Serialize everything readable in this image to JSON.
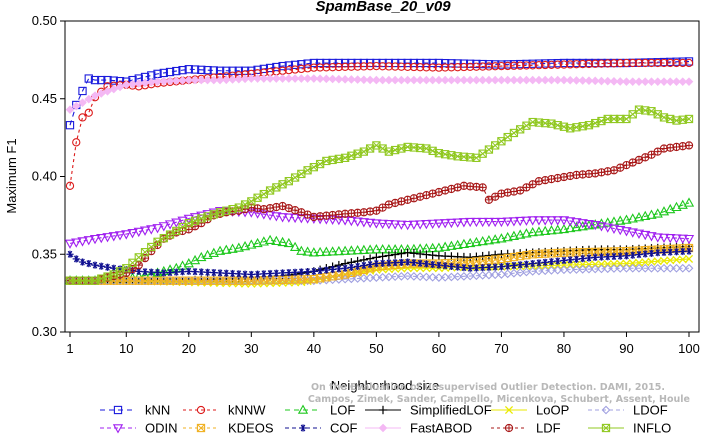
{
  "chart_data": {
    "type": "line",
    "title": "SpamBase_20_v09",
    "xlabel": "Neighborhood size",
    "ylabel": "Maximum F1",
    "xlim": [
      1,
      100
    ],
    "ylim": [
      0.3,
      0.5
    ],
    "x_ticks": [
      1,
      10,
      20,
      30,
      40,
      50,
      60,
      70,
      80,
      90,
      100
    ],
    "y_ticks": [
      "0.30",
      "0.35",
      "0.40",
      "0.45",
      "0.50"
    ],
    "grid": false,
    "legend_position": "bottom",
    "watermark": [
      "Campos, Zimek, Sander, Campello, Micenkova, Schubert, Assent, Houle",
      "On the Evaluation of Unsupervised Outlier Detection. DAMI, 2015."
    ],
    "series": [
      {
        "name": "kNN",
        "color": "#1a1adc",
        "marker": "square",
        "dash": "5,4",
        "points": [
          [
            1,
            0.433
          ],
          [
            2,
            0.446
          ],
          [
            3,
            0.455
          ],
          [
            4,
            0.463
          ],
          [
            5,
            0.462
          ],
          [
            7,
            0.462
          ],
          [
            10,
            0.461
          ],
          [
            12,
            0.463
          ],
          [
            15,
            0.466
          ],
          [
            20,
            0.469
          ],
          [
            25,
            0.468
          ],
          [
            30,
            0.468
          ],
          [
            35,
            0.471
          ],
          [
            40,
            0.473
          ],
          [
            50,
            0.473
          ],
          [
            60,
            0.473
          ],
          [
            70,
            0.472
          ],
          [
            80,
            0.473
          ],
          [
            90,
            0.473
          ],
          [
            100,
            0.474
          ]
        ]
      },
      {
        "name": "kNNW",
        "color": "#dc1a1a",
        "marker": "circle",
        "dash": "3,3",
        "points": [
          [
            1,
            0.394
          ],
          [
            2,
            0.422
          ],
          [
            3,
            0.438
          ],
          [
            4,
            0.441
          ],
          [
            5,
            0.451
          ],
          [
            7,
            0.458
          ],
          [
            10,
            0.459
          ],
          [
            12,
            0.458
          ],
          [
            15,
            0.46
          ],
          [
            20,
            0.462
          ],
          [
            25,
            0.464
          ],
          [
            30,
            0.466
          ],
          [
            35,
            0.468
          ],
          [
            40,
            0.47
          ],
          [
            50,
            0.471
          ],
          [
            60,
            0.47
          ],
          [
            70,
            0.471
          ],
          [
            80,
            0.472
          ],
          [
            90,
            0.473
          ],
          [
            100,
            0.473
          ]
        ]
      },
      {
        "name": "LOF",
        "color": "#1ec81e",
        "marker": "triangle-up",
        "dash": "5,4",
        "points": [
          [
            1,
            0.333
          ],
          [
            5,
            0.333
          ],
          [
            10,
            0.334
          ],
          [
            15,
            0.338
          ],
          [
            18,
            0.341
          ],
          [
            20,
            0.344
          ],
          [
            22,
            0.348
          ],
          [
            25,
            0.352
          ],
          [
            28,
            0.354
          ],
          [
            30,
            0.356
          ],
          [
            33,
            0.359
          ],
          [
            36,
            0.357
          ],
          [
            38,
            0.352
          ],
          [
            40,
            0.351
          ],
          [
            45,
            0.352
          ],
          [
            50,
            0.353
          ],
          [
            55,
            0.353
          ],
          [
            60,
            0.354
          ],
          [
            65,
            0.357
          ],
          [
            70,
            0.36
          ],
          [
            75,
            0.364
          ],
          [
            80,
            0.366
          ],
          [
            85,
            0.369
          ],
          [
            90,
            0.372
          ],
          [
            95,
            0.376
          ],
          [
            100,
            0.383
          ]
        ]
      },
      {
        "name": "SimplifiedLOF",
        "color": "#000000",
        "marker": "plus",
        "dash": "",
        "points": [
          [
            1,
            0.333
          ],
          [
            10,
            0.333
          ],
          [
            20,
            0.333
          ],
          [
            25,
            0.334
          ],
          [
            30,
            0.335
          ],
          [
            35,
            0.336
          ],
          [
            40,
            0.339
          ],
          [
            45,
            0.344
          ],
          [
            50,
            0.348
          ],
          [
            55,
            0.351
          ],
          [
            60,
            0.349
          ],
          [
            65,
            0.348
          ],
          [
            70,
            0.35
          ],
          [
            75,
            0.351
          ],
          [
            80,
            0.352
          ],
          [
            85,
            0.353
          ],
          [
            90,
            0.353
          ],
          [
            95,
            0.354
          ],
          [
            100,
            0.355
          ]
        ]
      },
      {
        "name": "LoOP",
        "color": "#eaea00",
        "marker": "x",
        "dash": "",
        "points": [
          [
            1,
            0.333
          ],
          [
            10,
            0.333
          ],
          [
            20,
            0.332
          ],
          [
            30,
            0.331
          ],
          [
            38,
            0.332
          ],
          [
            45,
            0.337
          ],
          [
            50,
            0.34
          ],
          [
            55,
            0.341
          ],
          [
            60,
            0.341
          ],
          [
            65,
            0.342
          ],
          [
            70,
            0.342
          ],
          [
            80,
            0.343
          ],
          [
            90,
            0.344
          ],
          [
            100,
            0.347
          ]
        ]
      },
      {
        "name": "LDOF",
        "color": "#a0a0e0",
        "marker": "diamond",
        "dash": "4,3",
        "points": [
          [
            1,
            0.333
          ],
          [
            10,
            0.333
          ],
          [
            20,
            0.333
          ],
          [
            30,
            0.333
          ],
          [
            40,
            0.333
          ],
          [
            45,
            0.334
          ],
          [
            50,
            0.335
          ],
          [
            55,
            0.336
          ],
          [
            60,
            0.335
          ],
          [
            65,
            0.336
          ],
          [
            70,
            0.337
          ],
          [
            75,
            0.339
          ],
          [
            80,
            0.34
          ],
          [
            90,
            0.341
          ],
          [
            100,
            0.341
          ]
        ]
      },
      {
        "name": "ODIN",
        "color": "#a020f0",
        "marker": "triangle-down",
        "dash": "4,3",
        "points": [
          [
            1,
            0.357
          ],
          [
            5,
            0.36
          ],
          [
            10,
            0.363
          ],
          [
            15,
            0.367
          ],
          [
            20,
            0.373
          ],
          [
            25,
            0.378
          ],
          [
            30,
            0.377
          ],
          [
            35,
            0.374
          ],
          [
            40,
            0.373
          ],
          [
            45,
            0.372
          ],
          [
            50,
            0.37
          ],
          [
            55,
            0.369
          ],
          [
            60,
            0.37
          ],
          [
            65,
            0.371
          ],
          [
            70,
            0.371
          ],
          [
            75,
            0.372
          ],
          [
            80,
            0.372
          ],
          [
            85,
            0.369
          ],
          [
            90,
            0.365
          ],
          [
            95,
            0.361
          ],
          [
            100,
            0.36
          ]
        ]
      },
      {
        "name": "KDEOS",
        "color": "#f0b020",
        "marker": "square-x",
        "dash": "3,3",
        "points": [
          [
            1,
            0.333
          ],
          [
            10,
            0.333
          ],
          [
            20,
            0.333
          ],
          [
            30,
            0.333
          ],
          [
            40,
            0.334
          ],
          [
            45,
            0.337
          ],
          [
            50,
            0.342
          ],
          [
            55,
            0.344
          ],
          [
            60,
            0.344
          ],
          [
            65,
            0.345
          ],
          [
            70,
            0.347
          ],
          [
            75,
            0.35
          ],
          [
            80,
            0.351
          ],
          [
            90,
            0.352
          ],
          [
            100,
            0.354
          ]
        ]
      },
      {
        "name": "COF",
        "color": "#101090",
        "marker": "asterisk",
        "dash": "4,3",
        "points": [
          [
            1,
            0.35
          ],
          [
            2,
            0.347
          ],
          [
            3,
            0.345
          ],
          [
            5,
            0.343
          ],
          [
            8,
            0.341
          ],
          [
            12,
            0.339
          ],
          [
            16,
            0.338
          ],
          [
            20,
            0.339
          ],
          [
            25,
            0.338
          ],
          [
            30,
            0.337
          ],
          [
            35,
            0.338
          ],
          [
            40,
            0.339
          ],
          [
            45,
            0.341
          ],
          [
            50,
            0.344
          ],
          [
            55,
            0.345
          ],
          [
            60,
            0.343
          ],
          [
            65,
            0.341
          ],
          [
            70,
            0.342
          ],
          [
            75,
            0.344
          ],
          [
            80,
            0.346
          ],
          [
            85,
            0.348
          ],
          [
            90,
            0.349
          ],
          [
            95,
            0.351
          ],
          [
            100,
            0.352
          ]
        ]
      },
      {
        "name": "FastABOD",
        "color": "#f4b8f4",
        "marker": "diamond-filled",
        "dash": "",
        "points": [
          [
            1,
            0.443
          ],
          [
            5,
            0.452
          ],
          [
            10,
            0.459
          ],
          [
            15,
            0.461
          ],
          [
            20,
            0.462
          ],
          [
            25,
            0.462
          ],
          [
            30,
            0.463
          ],
          [
            40,
            0.463
          ],
          [
            50,
            0.462
          ],
          [
            60,
            0.462
          ],
          [
            70,
            0.462
          ],
          [
            80,
            0.462
          ],
          [
            90,
            0.461
          ],
          [
            100,
            0.461
          ]
        ]
      },
      {
        "name": "LDF",
        "color": "#a81818",
        "marker": "circle-plus",
        "dash": "3,3",
        "points": [
          [
            1,
            0.333
          ],
          [
            5,
            0.333
          ],
          [
            8,
            0.336
          ],
          [
            10,
            0.338
          ],
          [
            12,
            0.343
          ],
          [
            14,
            0.352
          ],
          [
            16,
            0.36
          ],
          [
            18,
            0.364
          ],
          [
            20,
            0.366
          ],
          [
            22,
            0.37
          ],
          [
            24,
            0.375
          ],
          [
            26,
            0.377
          ],
          [
            28,
            0.378
          ],
          [
            30,
            0.38
          ],
          [
            32,
            0.379
          ],
          [
            35,
            0.381
          ],
          [
            38,
            0.377
          ],
          [
            40,
            0.374
          ],
          [
            45,
            0.376
          ],
          [
            48,
            0.377
          ],
          [
            50,
            0.378
          ],
          [
            52,
            0.382
          ],
          [
            55,
            0.385
          ],
          [
            58,
            0.388
          ],
          [
            61,
            0.391
          ],
          [
            64,
            0.394
          ],
          [
            67,
            0.393
          ],
          [
            68,
            0.385
          ],
          [
            70,
            0.389
          ],
          [
            73,
            0.391
          ],
          [
            76,
            0.397
          ],
          [
            79,
            0.399
          ],
          [
            82,
            0.401
          ],
          [
            85,
            0.402
          ],
          [
            88,
            0.404
          ],
          [
            91,
            0.409
          ],
          [
            94,
            0.414
          ],
          [
            96,
            0.418
          ],
          [
            98,
            0.419
          ],
          [
            100,
            0.42
          ]
        ]
      },
      {
        "name": "INFLO",
        "color": "#90c820",
        "marker": "square-x",
        "dash": "",
        "points": [
          [
            1,
            0.333
          ],
          [
            5,
            0.333
          ],
          [
            8,
            0.337
          ],
          [
            10,
            0.341
          ],
          [
            12,
            0.348
          ],
          [
            15,
            0.358
          ],
          [
            18,
            0.365
          ],
          [
            20,
            0.37
          ],
          [
            22,
            0.373
          ],
          [
            25,
            0.377
          ],
          [
            28,
            0.38
          ],
          [
            30,
            0.384
          ],
          [
            33,
            0.391
          ],
          [
            36,
            0.397
          ],
          [
            39,
            0.404
          ],
          [
            42,
            0.41
          ],
          [
            45,
            0.412
          ],
          [
            48,
            0.416
          ],
          [
            50,
            0.42
          ],
          [
            52,
            0.416
          ],
          [
            55,
            0.419
          ],
          [
            58,
            0.418
          ],
          [
            60,
            0.415
          ],
          [
            63,
            0.413
          ],
          [
            66,
            0.412
          ],
          [
            69,
            0.42
          ],
          [
            72,
            0.428
          ],
          [
            75,
            0.435
          ],
          [
            78,
            0.434
          ],
          [
            81,
            0.431
          ],
          [
            84,
            0.433
          ],
          [
            87,
            0.437
          ],
          [
            90,
            0.437
          ],
          [
            92,
            0.443
          ],
          [
            94,
            0.442
          ],
          [
            96,
            0.438
          ],
          [
            98,
            0.436
          ],
          [
            100,
            0.437
          ]
        ]
      }
    ]
  }
}
